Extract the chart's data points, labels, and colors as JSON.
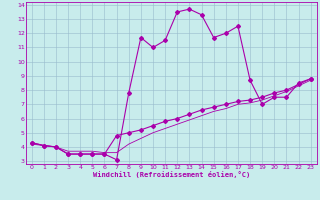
{
  "xlabel": "Windchill (Refroidissement éolien,°C)",
  "xlim": [
    -0.5,
    23.5
  ],
  "ylim": [
    2.8,
    14.2
  ],
  "xticks": [
    0,
    1,
    2,
    3,
    4,
    5,
    6,
    7,
    8,
    9,
    10,
    11,
    12,
    13,
    14,
    15,
    16,
    17,
    18,
    19,
    20,
    21,
    22,
    23
  ],
  "yticks": [
    3,
    4,
    5,
    6,
    7,
    8,
    9,
    10,
    11,
    12,
    13,
    14
  ],
  "bg_color": "#c8ecec",
  "line_color": "#aa00aa",
  "grid_color": "#99bbcc",
  "line1_y": [
    4.3,
    4.1,
    4.0,
    3.5,
    3.5,
    3.5,
    3.5,
    3.1,
    7.8,
    11.7,
    11.0,
    11.5,
    13.5,
    13.7,
    13.3,
    11.7,
    12.0,
    12.5,
    8.7,
    7.0,
    7.5,
    7.5,
    8.5,
    8.8
  ],
  "line2_y": [
    4.3,
    4.1,
    4.0,
    3.5,
    3.5,
    3.5,
    3.5,
    4.8,
    5.0,
    5.2,
    5.5,
    5.8,
    6.0,
    6.3,
    6.6,
    6.8,
    7.0,
    7.2,
    7.3,
    7.5,
    7.8,
    8.0,
    8.4,
    8.8
  ],
  "line3_y": [
    4.2,
    4.1,
    4.0,
    3.7,
    3.7,
    3.7,
    3.6,
    3.6,
    4.2,
    4.6,
    5.0,
    5.3,
    5.6,
    5.9,
    6.2,
    6.5,
    6.7,
    7.0,
    7.1,
    7.3,
    7.6,
    7.9,
    8.3,
    8.7
  ]
}
